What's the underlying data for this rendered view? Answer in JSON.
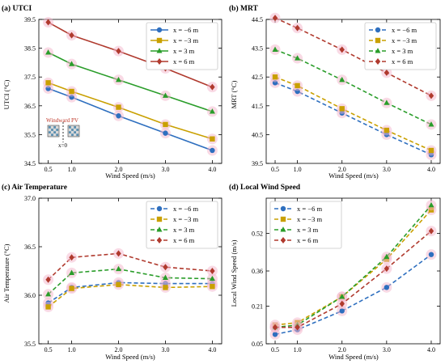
{
  "chart_data": [
    {
      "type": "line",
      "title": "(a) UTCI",
      "xlabel": "Wind Speed (m/s)",
      "ylabel": "UTCI (°C)",
      "x": [
        0.5,
        1.0,
        2.0,
        3.0,
        4.0
      ],
      "xticks": [
        "0.5",
        "1.0",
        "2.0",
        "3.0",
        "4.0"
      ],
      "xlim": [
        0.3,
        4.2
      ],
      "ylim": [
        34.5,
        39.5
      ],
      "yticks": [
        "34.5",
        "35.5",
        "36.5",
        "37.5",
        "38.5",
        "39.5"
      ],
      "ytick_values": [
        34.5,
        35.5,
        36.5,
        37.5,
        38.5,
        39.5
      ],
      "line_style": "solid",
      "legend": "top-right",
      "inset": {
        "label": "Windward PV",
        "sublabel": "x=0"
      },
      "series": [
        {
          "name": "x = −6 m",
          "color": "#2e6fbf",
          "marker": "circle",
          "values": [
            37.1,
            36.8,
            36.15,
            35.55,
            34.95
          ]
        },
        {
          "name": "x = −3 m",
          "color": "#c9a000",
          "marker": "square",
          "values": [
            37.3,
            37.0,
            36.45,
            35.85,
            35.35
          ]
        },
        {
          "name": "x = 3 m",
          "color": "#2a9d2a",
          "marker": "triangle",
          "values": [
            38.35,
            37.95,
            37.4,
            36.85,
            36.3
          ]
        },
        {
          "name": "x = 6 m",
          "color": "#b03a2e",
          "marker": "diamond",
          "values": [
            39.4,
            38.95,
            38.4,
            37.8,
            37.15
          ]
        }
      ]
    },
    {
      "type": "line",
      "title": "(b) MRT",
      "xlabel": "Wind Speed (m/s)",
      "ylabel": "MRT (°C)",
      "x": [
        0.5,
        1.0,
        2.0,
        3.0,
        4.0
      ],
      "xticks": [
        "0.5",
        "1.0",
        "2.0",
        "3.0",
        "4.0"
      ],
      "xlim": [
        0.3,
        4.2
      ],
      "ylim": [
        39.5,
        44.5
      ],
      "yticks": [
        "39.5",
        "40.5",
        "41.5",
        "42.5",
        "43.5",
        "44.5"
      ],
      "ytick_values": [
        39.5,
        40.5,
        41.5,
        42.5,
        43.5,
        44.5
      ],
      "line_style": "dashed",
      "legend": "top-right",
      "series": [
        {
          "name": "x = −6 m",
          "color": "#2e6fbf",
          "marker": "circle",
          "values": [
            42.3,
            42.0,
            41.25,
            40.5,
            39.8
          ]
        },
        {
          "name": "x = −3 m",
          "color": "#c9a000",
          "marker": "square",
          "values": [
            42.5,
            42.2,
            41.4,
            40.65,
            39.95
          ]
        },
        {
          "name": "x = 3 m",
          "color": "#2a9d2a",
          "marker": "triangle",
          "values": [
            43.45,
            43.15,
            42.4,
            41.6,
            40.85
          ]
        },
        {
          "name": "x = 6 m",
          "color": "#b03a2e",
          "marker": "diamond",
          "values": [
            44.55,
            44.2,
            43.45,
            42.65,
            41.85
          ]
        }
      ]
    },
    {
      "type": "line",
      "title": "(c) Air Temperature",
      "xlabel": "Wind Speed (m/s)",
      "ylabel": "Air Temperature (°C)",
      "x": [
        0.5,
        1.0,
        2.0,
        3.0,
        4.0
      ],
      "xticks": [
        "0.5",
        "1.0",
        "2.0",
        "3.0",
        "4.0"
      ],
      "xlim": [
        0.3,
        4.2
      ],
      "ylim": [
        35.5,
        37.0
      ],
      "yticks": [
        "35.5",
        "36.0",
        "36.5",
        "37.0"
      ],
      "ytick_values": [
        35.5,
        36.0,
        36.5,
        37.0
      ],
      "line_style": "dashed",
      "legend": "top-right",
      "series": [
        {
          "name": "x = −6 m",
          "color": "#2e6fbf",
          "marker": "circle",
          "values": [
            35.92,
            36.08,
            36.13,
            36.12,
            36.12
          ]
        },
        {
          "name": "x = −3 m",
          "color": "#c9a000",
          "marker": "square",
          "values": [
            35.88,
            36.07,
            36.11,
            36.08,
            36.09
          ]
        },
        {
          "name": "x = 3 m",
          "color": "#2a9d2a",
          "marker": "triangle",
          "values": [
            36.01,
            36.23,
            36.27,
            36.18,
            36.17
          ]
        },
        {
          "name": "x = 6 m",
          "color": "#b03a2e",
          "marker": "diamond",
          "values": [
            36.16,
            36.39,
            36.43,
            36.29,
            36.25
          ]
        }
      ]
    },
    {
      "type": "line",
      "title": "(d) Local Wind Speed",
      "xlabel": "Wind Speed (m/s)",
      "ylabel": "Local Wind Speed (m/s)",
      "x": [
        0.5,
        1.0,
        2.0,
        3.0,
        4.0
      ],
      "xticks": [
        "0.5",
        "1.0",
        "2.0",
        "3.0",
        "4.0"
      ],
      "xlim": [
        0.3,
        4.2
      ],
      "ylim": [
        0.05,
        0.67
      ],
      "yticks": [
        "0.05",
        "0.21",
        "0.36",
        "0.52"
      ],
      "ytick_values": [
        0.05,
        0.21,
        0.36,
        0.52
      ],
      "line_style": "dashed",
      "legend": "top-left",
      "series": [
        {
          "name": "x = −6 m",
          "color": "#2e6fbf",
          "marker": "circle",
          "values": [
            0.09,
            0.11,
            0.19,
            0.29,
            0.43
          ]
        },
        {
          "name": "x = −3 m",
          "color": "#c9a000",
          "marker": "square",
          "values": [
            0.13,
            0.14,
            0.25,
            0.41,
            0.62
          ]
        },
        {
          "name": "x = 3 m",
          "color": "#2a9d2a",
          "marker": "triangle",
          "values": [
            0.12,
            0.13,
            0.25,
            0.42,
            0.64
          ]
        },
        {
          "name": "x = 6 m",
          "color": "#b03a2e",
          "marker": "diamond",
          "values": [
            0.12,
            0.12,
            0.22,
            0.37,
            0.53
          ]
        }
      ]
    }
  ]
}
